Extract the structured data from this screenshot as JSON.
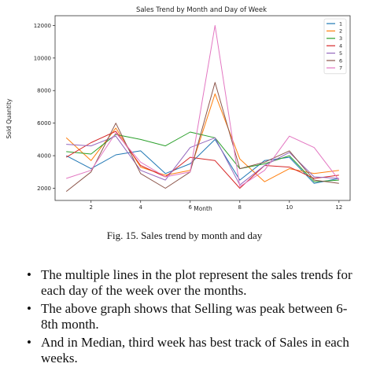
{
  "chart_data": {
    "type": "line",
    "title": "Sales Trend by Month and Day of Week",
    "xlabel": "Month",
    "ylabel": "Sold Quantity",
    "xlim": [
      0.55,
      12.45
    ],
    "ylim": [
      1250,
      12600
    ],
    "xticks": [
      2,
      4,
      6,
      8,
      10,
      12
    ],
    "yticks": [
      2000,
      4000,
      6000,
      8000,
      10000,
      12000
    ],
    "grid": false,
    "legend_position": "top-right",
    "x": [
      1,
      2,
      3,
      4,
      5,
      6,
      7,
      8,
      9,
      10,
      11,
      12
    ],
    "series": [
      {
        "name": "1",
        "color": "#1f77b4",
        "values": [
          4000,
          3200,
          4050,
          4300,
          2900,
          3500,
          5000,
          2500,
          3700,
          3900,
          2300,
          2600
        ]
      },
      {
        "name": "2",
        "color": "#ff7f0e",
        "values": [
          5100,
          3700,
          5700,
          3300,
          2800,
          3100,
          7800,
          3800,
          2400,
          3200,
          2900,
          3100
        ]
      },
      {
        "name": "3",
        "color": "#2ca02c",
        "values": [
          4250,
          4100,
          5300,
          5000,
          4600,
          5450,
          5100,
          3200,
          3500,
          4000,
          2400,
          2500
        ]
      },
      {
        "name": "4",
        "color": "#d62728",
        "values": [
          3900,
          4800,
          5500,
          3400,
          2700,
          3900,
          3700,
          2000,
          3400,
          3300,
          2600,
          2800
        ]
      },
      {
        "name": "5",
        "color": "#9467bd",
        "values": [
          4700,
          4600,
          5200,
          3100,
          2500,
          4500,
          5100,
          2200,
          3400,
          4200,
          2700,
          2600
        ]
      },
      {
        "name": "6",
        "color": "#8c564b",
        "values": [
          1800,
          3000,
          6000,
          2900,
          2000,
          3000,
          8500,
          3200,
          3600,
          4300,
          2500,
          2300
        ]
      },
      {
        "name": "7",
        "color": "#e377c2",
        "values": [
          2600,
          3100,
          5400,
          3600,
          2700,
          3000,
          12000,
          2100,
          3100,
          5200,
          4500,
          2500
        ]
      }
    ]
  },
  "figure": {
    "caption": "Fig. 15.  Sales trend by month and day"
  },
  "bullets": [
    "The multiple lines in the plot represent the sales trends for each day of the week over the months.",
    "The above graph shows that Selling was peak between 6-8th month.",
    "And in Median, third week has best track of Sales in each weeks."
  ]
}
